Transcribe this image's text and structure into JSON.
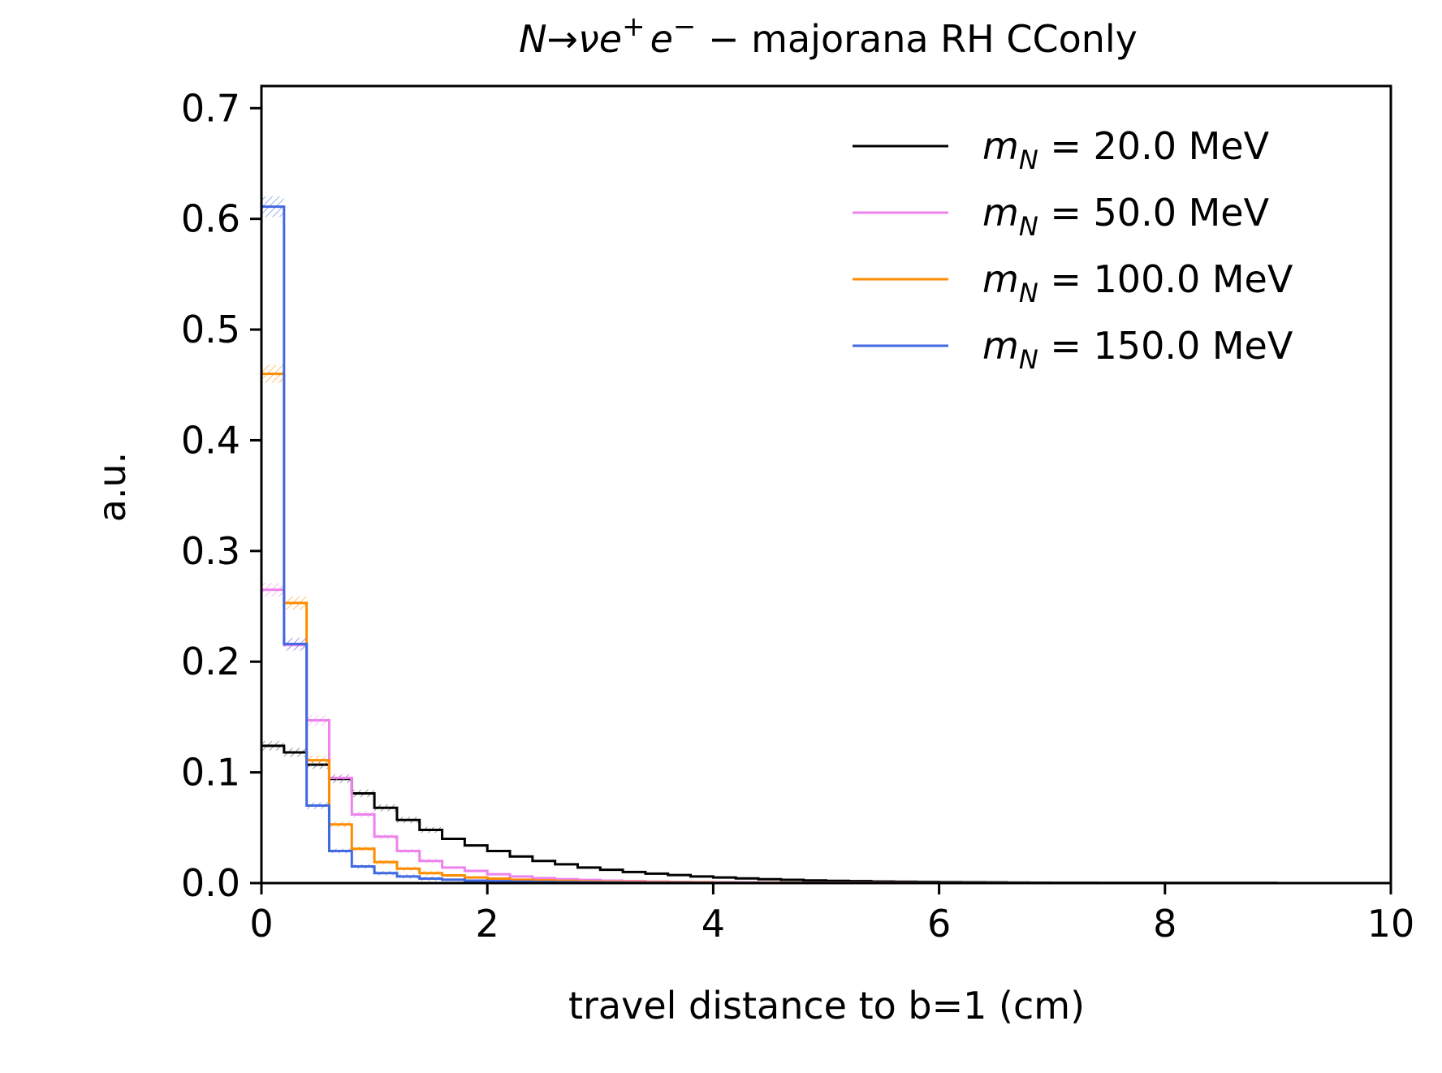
{
  "chart_data": {
    "type": "line",
    "title": "N→νe⁺ e⁻ − majorana RH CConly",
    "xlabel": "travel distance to b=1 (cm)",
    "ylabel": "a.u.",
    "xlim": [
      0,
      10
    ],
    "ylim": [
      0,
      0.72
    ],
    "xticks": [
      "0",
      "2",
      "4",
      "6",
      "8",
      "10"
    ],
    "yticks": [
      "0.0",
      "0.1",
      "0.2",
      "0.3",
      "0.4",
      "0.5",
      "0.6",
      "0.7"
    ],
    "legend_position": "top-right",
    "grid": false,
    "bin_edges": [
      0,
      0.2,
      0.4,
      0.6,
      0.8,
      1.0,
      1.2,
      1.4,
      1.6,
      1.8,
      2.0,
      2.2,
      2.4,
      2.6,
      2.8,
      3.0,
      3.2,
      3.4,
      3.6,
      3.8,
      4.0,
      4.2,
      4.4,
      4.6,
      4.8,
      5.0,
      5.2,
      5.4,
      5.6,
      5.8,
      6.0,
      6.2,
      6.4,
      6.6,
      6.8,
      7.0,
      7.2,
      7.4,
      7.6,
      7.8,
      8.0,
      8.2,
      8.4,
      8.6,
      8.8,
      9.0
    ],
    "series": [
      {
        "name": "m_N = 20.0 MeV",
        "legend_var": "m",
        "legend_sub": "N",
        "legend_rest": " = 20.0 MeV",
        "color": "#000000",
        "values": [
          0.124,
          0.118,
          0.107,
          0.094,
          0.081,
          0.068,
          0.057,
          0.048,
          0.04,
          0.034,
          0.029,
          0.024,
          0.02,
          0.017,
          0.014,
          0.012,
          0.01,
          0.0085,
          0.0072,
          0.006,
          0.005,
          0.0042,
          0.0035,
          0.0029,
          0.0024,
          0.002,
          0.0017,
          0.0014,
          0.0012,
          0.001,
          0.0008,
          0.0007,
          0.0006,
          0.0005,
          0.0004,
          0.0003,
          0.0003,
          0.0002,
          0.0002,
          0.0002,
          0.0001,
          0.0001,
          0.0001,
          0.0001,
          0.0001
        ]
      },
      {
        "name": "m_N = 50.0 MeV",
        "legend_var": "m",
        "legend_sub": "N",
        "legend_rest": " = 50.0 MeV",
        "color": "#ee82ee",
        "values": [
          0.265,
          0.215,
          0.147,
          0.095,
          0.062,
          0.042,
          0.029,
          0.02,
          0.014,
          0.011,
          0.008,
          0.006,
          0.0045,
          0.0035,
          0.0028,
          0.0022,
          0.0018,
          0.0014,
          0.0011,
          0.0009,
          0.0007,
          0.0006,
          0.0005,
          0.0004,
          0.0003,
          0.0003,
          0.0002,
          0.0002,
          0.0002,
          0.0001,
          0.0001,
          0.0001,
          0.0001,
          0.0001,
          0.0001,
          0.0001,
          0.0001,
          0.0001,
          0.0001,
          0.0001,
          0.0001,
          0.0001,
          0.0001,
          0.0001,
          0.0001
        ]
      },
      {
        "name": "m_N = 100.0 MeV",
        "legend_var": "m",
        "legend_sub": "N",
        "legend_rest": " = 100.0 MeV",
        "color": "#ff8c00",
        "values": [
          0.46,
          0.253,
          0.111,
          0.053,
          0.031,
          0.019,
          0.013,
          0.009,
          0.007,
          0.005,
          0.004,
          0.003,
          0.0025,
          0.002,
          0.0015,
          0.0012,
          0.001,
          0.0008,
          0.0007,
          0.0006,
          0.0005,
          0.0004,
          0.0003,
          0.0003,
          0.0002,
          0.0002,
          0.0002,
          0.0001,
          0.0001,
          0.0001,
          0.0001,
          0.0001,
          0.0001,
          0.0001,
          0.0001,
          0.0001,
          0.0001,
          0.0001,
          0.0001,
          0.0001,
          0.0001,
          0.0001,
          0.0001,
          0.0001,
          0.0001
        ]
      },
      {
        "name": "m_N = 150.0 MeV",
        "legend_var": "m",
        "legend_sub": "N",
        "legend_rest": " = 150.0 MeV",
        "color": "#4169e1",
        "values": [
          0.611,
          0.216,
          0.07,
          0.029,
          0.015,
          0.009,
          0.006,
          0.004,
          0.003,
          0.0022,
          0.0017,
          0.0013,
          0.001,
          0.0008,
          0.0006,
          0.0005,
          0.0004,
          0.0003,
          0.0003,
          0.0002,
          0.0002,
          0.0002,
          0.0001,
          0.0001,
          0.0001,
          0.0001,
          0.0001,
          0.0001,
          0.0001,
          0.0001,
          0.0001,
          0.0001,
          0.0001,
          0.0001,
          0.0001,
          0.0001,
          0.0001,
          0.0001,
          0.0001,
          0.0001,
          0.0001,
          0.0001,
          0.0001,
          0.0001,
          0.0001
        ]
      }
    ]
  }
}
